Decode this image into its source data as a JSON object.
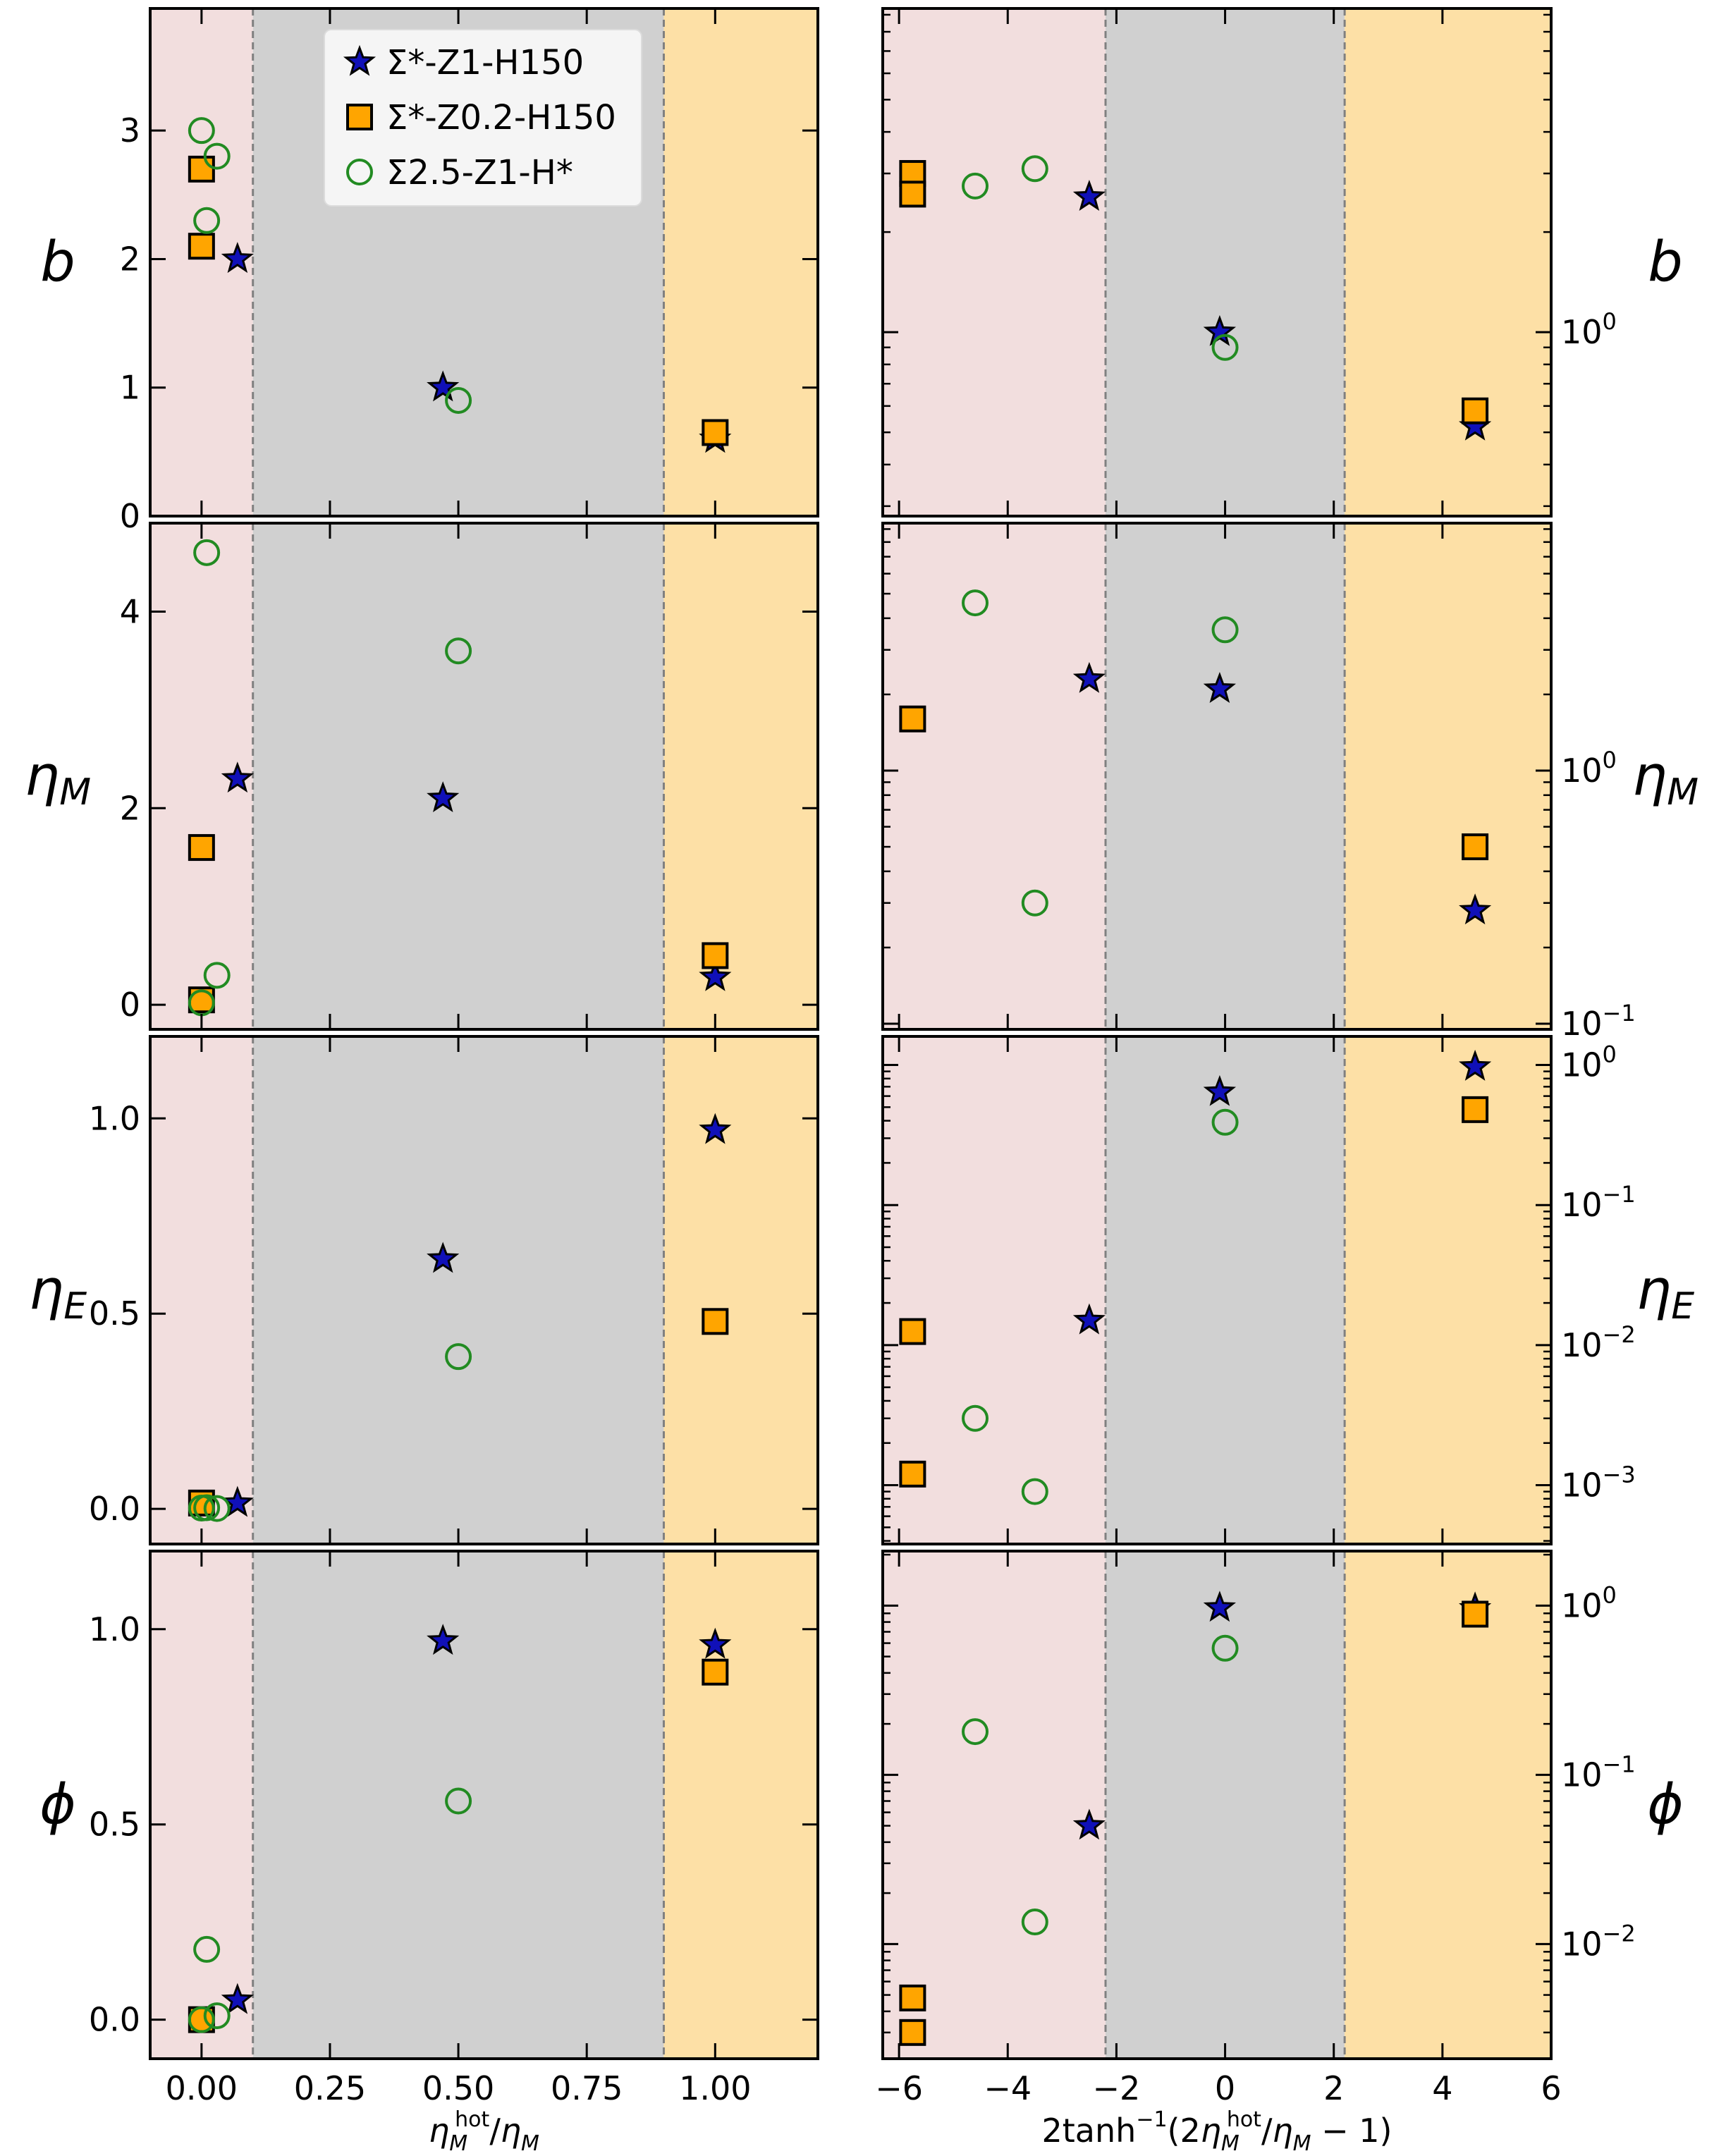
{
  "chart_data": [
    {
      "type": "scatter",
      "panel": "left",
      "row": 1,
      "ylabel": "b",
      "xlabel": "",
      "xlim": [
        -0.1,
        1.2
      ],
      "ylim": [
        0,
        3.95
      ],
      "yscale": "linear",
      "xticks": [
        0.0,
        0.25,
        0.5,
        0.75,
        1.0
      ],
      "yticks": [
        0,
        1,
        2,
        3
      ],
      "regions": [
        {
          "from": -0.1,
          "to": 0.1,
          "color": "#f2dede"
        },
        {
          "from": 0.1,
          "to": 0.9,
          "color": "#d0d0d0"
        },
        {
          "from": 0.9,
          "to": 1.2,
          "color": "#fde0a6"
        }
      ],
      "dividers": [
        0.1,
        0.9
      ],
      "series": [
        {
          "name": "Σ*-Z1-H150",
          "marker": "star",
          "x": [
            0.07,
            0.47,
            1.0
          ],
          "y": [
            2.0,
            1.0,
            0.6
          ]
        },
        {
          "name": "Σ*-Z0.2-H150",
          "marker": "square",
          "x": [
            0.0,
            0.0,
            1.0
          ],
          "y": [
            2.7,
            2.1,
            0.65
          ]
        },
        {
          "name": "Σ2.5-Z1-H*",
          "marker": "circle",
          "x": [
            0.0,
            0.01,
            0.03,
            0.5
          ],
          "y": [
            3.0,
            2.3,
            2.8,
            0.9
          ]
        }
      ]
    },
    {
      "type": "scatter",
      "panel": "right",
      "row": 1,
      "ylabel": "b",
      "xlabel": "",
      "xlim": [
        -6.3,
        6
      ],
      "ylim": [
        0.28,
        9.4
      ],
      "yscale": "log",
      "xticks": [
        -6,
        -4,
        -2,
        0,
        2,
        4,
        6
      ],
      "yticks": [
        1
      ],
      "ytick_labels": [
        "10^0"
      ],
      "regions": [
        {
          "from": -6.3,
          "to": -2.2,
          "color": "#f2dede"
        },
        {
          "from": -2.2,
          "to": 2.2,
          "color": "#d0d0d0"
        },
        {
          "from": 2.2,
          "to": 6,
          "color": "#fde0a6"
        }
      ],
      "dividers": [
        -2.2,
        2.2
      ],
      "series": [
        {
          "name": "Σ*-Z1-H150",
          "marker": "star",
          "x": [
            -2.5,
            -0.1,
            4.6
          ],
          "y": [
            2.55,
            1.0,
            0.52
          ]
        },
        {
          "name": "Σ*-Z0.2-H150",
          "marker": "square",
          "x": [
            -5.75,
            -5.75,
            4.6
          ],
          "y": [
            3.0,
            2.6,
            0.58
          ]
        },
        {
          "name": "Σ2.5-Z1-H*",
          "marker": "circle",
          "x": [
            -3.5,
            -4.6,
            0.0
          ],
          "y": [
            3.1,
            2.75,
            0.9
          ]
        }
      ]
    },
    {
      "type": "scatter",
      "panel": "left",
      "row": 2,
      "ylabel": "ηM",
      "xlabel": "",
      "xlim": [
        -0.1,
        1.2
      ],
      "ylim": [
        -0.25,
        4.9
      ],
      "yscale": "linear",
      "xticks": [
        0.0,
        0.25,
        0.5,
        0.75,
        1.0
      ],
      "yticks": [
        0,
        2,
        4
      ],
      "regions": [
        {
          "from": -0.1,
          "to": 0.1,
          "color": "#f2dede"
        },
        {
          "from": 0.1,
          "to": 0.9,
          "color": "#d0d0d0"
        },
        {
          "from": 0.9,
          "to": 1.2,
          "color": "#fde0a6"
        }
      ],
      "dividers": [
        0.1,
        0.9
      ],
      "series": [
        {
          "name": "Σ*-Z1-H150",
          "marker": "star",
          "x": [
            0.07,
            0.47,
            1.0
          ],
          "y": [
            2.3,
            2.1,
            0.28
          ]
        },
        {
          "name": "Σ*-Z0.2-H150",
          "marker": "square",
          "x": [
            0.0,
            0.0,
            1.0
          ],
          "y": [
            1.6,
            0.05,
            0.5
          ]
        },
        {
          "name": "Σ2.5-Z1-H*",
          "marker": "circle",
          "x": [
            0.01,
            0.5,
            0.03,
            0.0
          ],
          "y": [
            4.6,
            3.6,
            0.3,
            0.02
          ]
        }
      ]
    },
    {
      "type": "scatter",
      "panel": "right",
      "row": 2,
      "ylabel": "ηM",
      "xlabel": "",
      "xlim": [
        -6.3,
        6
      ],
      "ylim": [
        0.095,
        9.5
      ],
      "yscale": "log",
      "xticks": [
        -6,
        -4,
        -2,
        0,
        2,
        4,
        6
      ],
      "yticks": [
        0.1,
        1
      ],
      "ytick_labels": [
        "10^-1",
        "10^0"
      ],
      "regions": [
        {
          "from": -6.3,
          "to": -2.2,
          "color": "#f2dede"
        },
        {
          "from": -2.2,
          "to": 2.2,
          "color": "#d0d0d0"
        },
        {
          "from": 2.2,
          "to": 6,
          "color": "#fde0a6"
        }
      ],
      "dividers": [
        -2.2,
        2.2
      ],
      "series": [
        {
          "name": "Σ*-Z1-H150",
          "marker": "star",
          "x": [
            -2.5,
            -0.1,
            4.6
          ],
          "y": [
            2.3,
            2.1,
            0.28
          ]
        },
        {
          "name": "Σ*-Z0.2-H150",
          "marker": "square",
          "x": [
            -5.75,
            4.6
          ],
          "y": [
            1.6,
            0.5
          ]
        },
        {
          "name": "Σ2.5-Z1-H*",
          "marker": "circle",
          "x": [
            -4.6,
            0.0,
            -3.5
          ],
          "y": [
            4.6,
            3.6,
            0.3
          ]
        }
      ]
    },
    {
      "type": "scatter",
      "panel": "left",
      "row": 3,
      "ylabel": "ηE",
      "xlabel": "",
      "xlim": [
        -0.1,
        1.2
      ],
      "ylim": [
        -0.09,
        1.21
      ],
      "yscale": "linear",
      "xticks": [
        0.0,
        0.25,
        0.5,
        0.75,
        1.0
      ],
      "yticks": [
        0.0,
        0.5,
        1.0
      ],
      "regions": [
        {
          "from": -0.1,
          "to": 0.1,
          "color": "#f2dede"
        },
        {
          "from": 0.1,
          "to": 0.9,
          "color": "#d0d0d0"
        },
        {
          "from": 0.9,
          "to": 1.2,
          "color": "#fde0a6"
        }
      ],
      "dividers": [
        0.1,
        0.9
      ],
      "series": [
        {
          "name": "Σ*-Z1-H150",
          "marker": "star",
          "x": [
            0.07,
            0.47,
            1.0
          ],
          "y": [
            0.015,
            0.64,
            0.97
          ]
        },
        {
          "name": "Σ*-Z0.2-H150",
          "marker": "square",
          "x": [
            0.0,
            1.0
          ],
          "y": [
            0.015,
            0.48
          ]
        },
        {
          "name": "Σ2.5-Z1-H*",
          "marker": "circle",
          "x": [
            0.0,
            0.01,
            0.03,
            0.5
          ],
          "y": [
            0.002,
            0.003,
            0.001,
            0.39
          ]
        }
      ]
    },
    {
      "type": "scatter",
      "panel": "right",
      "row": 3,
      "ylabel": "ηE",
      "xlabel": "",
      "xlim": [
        -6.3,
        6
      ],
      "ylim": [
        0.00038,
        1.6
      ],
      "yscale": "log",
      "xticks": [
        -6,
        -4,
        -2,
        0,
        2,
        4,
        6
      ],
      "yticks": [
        0.001,
        0.01,
        0.1,
        1
      ],
      "ytick_labels": [
        "10^-3",
        "10^-2",
        "10^-1",
        "10^0"
      ],
      "regions": [
        {
          "from": -6.3,
          "to": -2.2,
          "color": "#f2dede"
        },
        {
          "from": -2.2,
          "to": 2.2,
          "color": "#d0d0d0"
        },
        {
          "from": 2.2,
          "to": 6,
          "color": "#fde0a6"
        }
      ],
      "dividers": [
        -2.2,
        2.2
      ],
      "series": [
        {
          "name": "Σ*-Z1-H150",
          "marker": "star",
          "x": [
            -2.5,
            -0.1,
            4.6
          ],
          "y": [
            0.015,
            0.64,
            0.97
          ]
        },
        {
          "name": "Σ*-Z0.2-H150",
          "marker": "square",
          "x": [
            -5.75,
            -5.75,
            4.6
          ],
          "y": [
            0.0125,
            0.0012,
            0.48
          ]
        },
        {
          "name": "Σ2.5-Z1-H*",
          "marker": "circle",
          "x": [
            -4.6,
            -3.5,
            0.0
          ],
          "y": [
            0.003,
            0.0009,
            0.39
          ]
        }
      ]
    },
    {
      "type": "scatter",
      "panel": "left",
      "row": 4,
      "ylabel": "ϕ",
      "xlabel": "η_M^hot/η_M",
      "xlim": [
        -0.1,
        1.2
      ],
      "ylim": [
        -0.1,
        1.2
      ],
      "yscale": "linear",
      "xticks": [
        0.0,
        0.25,
        0.5,
        0.75,
        1.0
      ],
      "xtick_labels": [
        "0.00",
        "0.25",
        "0.50",
        "0.75",
        "1.00"
      ],
      "yticks": [
        0.0,
        0.5,
        1.0
      ],
      "regions": [
        {
          "from": -0.1,
          "to": 0.1,
          "color": "#f2dede"
        },
        {
          "from": 0.1,
          "to": 0.9,
          "color": "#d0d0d0"
        },
        {
          "from": 0.9,
          "to": 1.2,
          "color": "#fde0a6"
        }
      ],
      "dividers": [
        0.1,
        0.9
      ],
      "series": [
        {
          "name": "Σ*-Z1-H150",
          "marker": "star",
          "x": [
            0.07,
            0.47,
            1.0
          ],
          "y": [
            0.05,
            0.97,
            0.96
          ]
        },
        {
          "name": "Σ*-Z0.2-H150",
          "marker": "square",
          "x": [
            0.0,
            1.0
          ],
          "y": [
            0.0,
            0.89
          ]
        },
        {
          "name": "Σ2.5-Z1-H*",
          "marker": "circle",
          "x": [
            0.01,
            0.5,
            0.0,
            0.03
          ],
          "y": [
            0.18,
            0.56,
            0.0,
            0.01
          ]
        }
      ]
    },
    {
      "type": "scatter",
      "panel": "right",
      "row": 4,
      "ylabel": "ϕ",
      "xlabel": "2tanh^-1(2η_M^hot/η_M − 1)",
      "xlim": [
        -6.3,
        6
      ],
      "ylim": [
        0.0021,
        2.1
      ],
      "yscale": "log",
      "xticks": [
        -6,
        -4,
        -2,
        0,
        2,
        4,
        6
      ],
      "xtick_labels": [
        "−6",
        "−4",
        "−2",
        "0",
        "2",
        "4",
        "6"
      ],
      "yticks": [
        0.01,
        0.1,
        1
      ],
      "ytick_labels": [
        "10^-2",
        "10^-1",
        "10^0"
      ],
      "regions": [
        {
          "from": -6.3,
          "to": -2.2,
          "color": "#f2dede"
        },
        {
          "from": -2.2,
          "to": 2.2,
          "color": "#d0d0d0"
        },
        {
          "from": 2.2,
          "to": 6,
          "color": "#fde0a6"
        }
      ],
      "dividers": [
        -2.2,
        2.2
      ],
      "series": [
        {
          "name": "Σ*-Z1-H150",
          "marker": "star",
          "x": [
            -2.5,
            -0.1,
            4.6
          ],
          "y": [
            0.05,
            0.97,
            0.96
          ]
        },
        {
          "name": "Σ*-Z0.2-H150",
          "marker": "square",
          "x": [
            -5.75,
            -5.75,
            4.6
          ],
          "y": [
            0.0048,
            0.003,
            0.89
          ]
        },
        {
          "name": "Σ2.5-Z1-H*",
          "marker": "circle",
          "x": [
            -4.6,
            -3.5,
            0.0
          ],
          "y": [
            0.18,
            0.0135,
            0.56
          ]
        }
      ]
    }
  ],
  "legend": {
    "placement": "upper-center of top-left panel",
    "entries": [
      {
        "label": "Σ*-Z1-H150",
        "marker": "star"
      },
      {
        "label": "Σ*-Z0.2-H150",
        "marker": "square"
      },
      {
        "label": "Σ2.5-Z1-H*",
        "marker": "circle"
      }
    ]
  },
  "colors": {
    "star_fill": "#1010b8",
    "square_fill": "#ffa500",
    "circle_stroke": "#228b22",
    "region_left": "#f2dede",
    "region_mid": "#d0d0d0",
    "region_right": "#fde0a6",
    "divider": "#808080"
  }
}
